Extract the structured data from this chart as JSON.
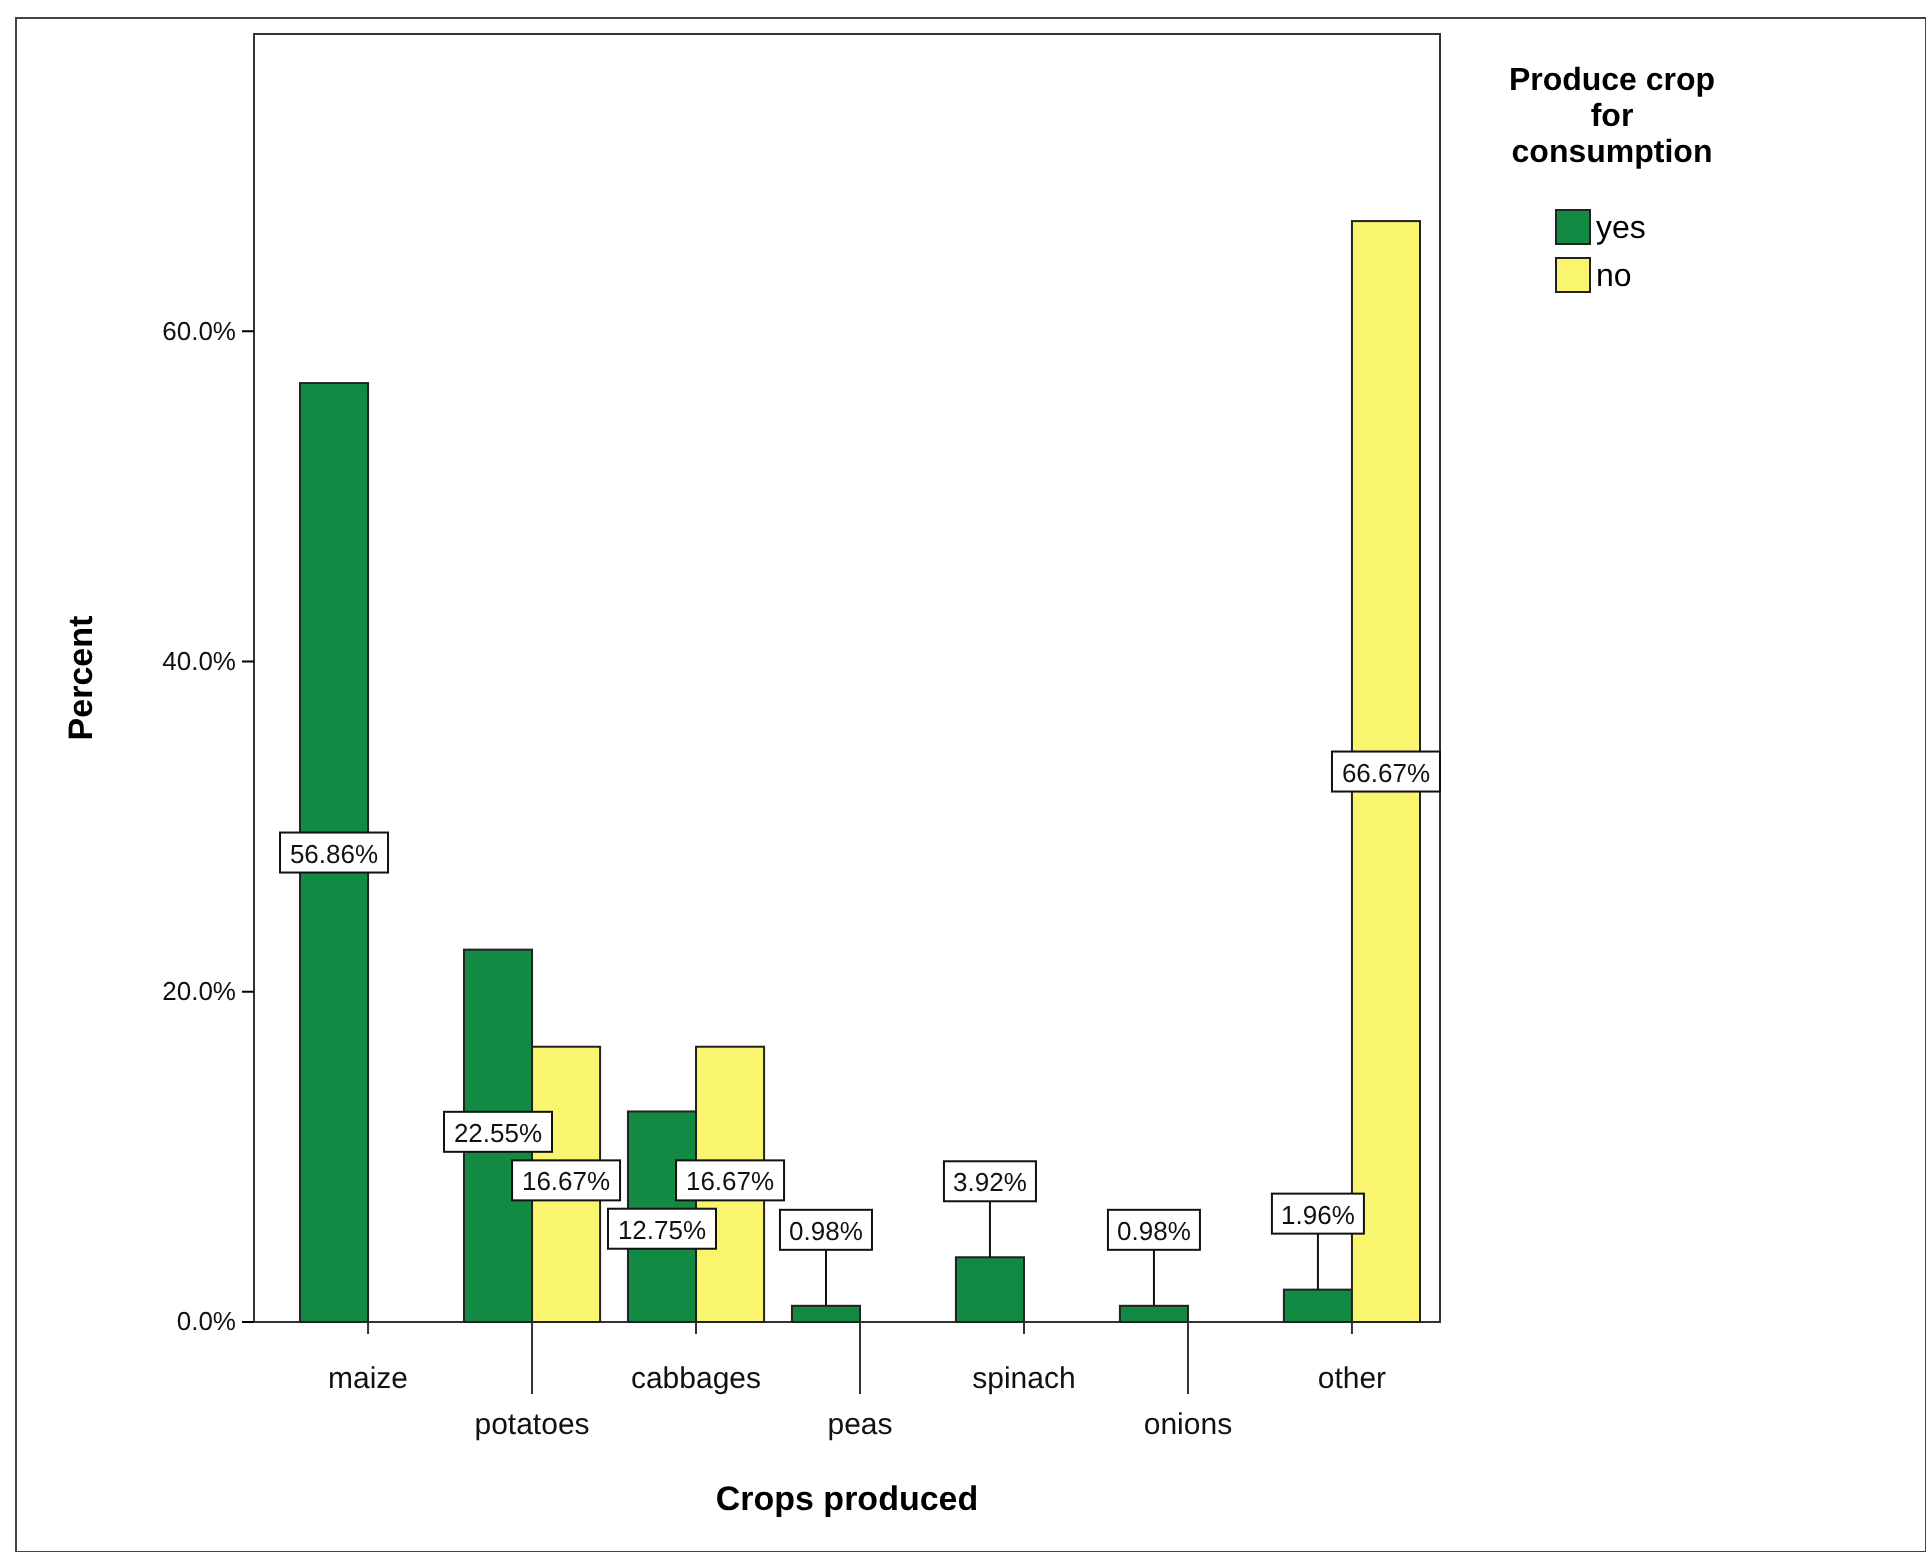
{
  "chart_data": {
    "type": "bar",
    "xlabel": "Crops produced",
    "ylabel": "Percent",
    "legend_title": "Produce crop for consumption",
    "legend": "top right",
    "categories": [
      "maize",
      "potatoes",
      "cabbages",
      "peas",
      "spinach",
      "onions",
      "other"
    ],
    "ylim": [
      0,
      78
    ],
    "yticks": [
      {
        "value": 0,
        "label": "0.0%"
      },
      {
        "value": 20,
        "label": "20.0%"
      },
      {
        "value": 40,
        "label": "40.0%"
      },
      {
        "value": 60,
        "label": "60.0%"
      }
    ],
    "series": [
      {
        "name": "yes",
        "color": "#138a44",
        "values": [
          56.86,
          22.55,
          12.75,
          0.98,
          3.92,
          0.98,
          1.96
        ],
        "value_labels": [
          "56.86%",
          "22.55%",
          "12.75%",
          "0.98%",
          "3.92%",
          "0.98%",
          "1.96%"
        ]
      },
      {
        "name": "no",
        "color": "#faf56e",
        "values": [
          null,
          16.67,
          16.67,
          null,
          null,
          null,
          66.67
        ],
        "value_labels": [
          null,
          "16.67%",
          "16.67%",
          null,
          null,
          null,
          "66.67%"
        ]
      }
    ]
  }
}
